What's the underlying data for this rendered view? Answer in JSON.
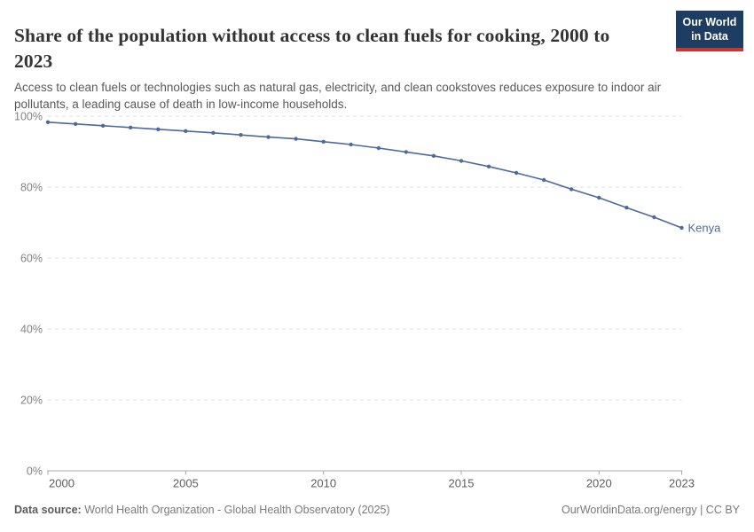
{
  "header": {
    "title": "Share of the population without access to clean fuels for cooking, 2000 to 2023",
    "subtitle": "Access to clean fuels or technologies such as natural gas, electricity, and clean cookstoves reduces exposure to indoor air pollutants, a leading cause of death in low-income households.",
    "logo": {
      "line1": "Our World",
      "line2": "in Data"
    }
  },
  "footer": {
    "source_label": "Data source:",
    "source_text": " World Health Organization - Global Health Observatory (2025)",
    "attribution": "OurWorldinData.org/energy | CC BY"
  },
  "chart_data": {
    "type": "line",
    "title": "Share of the population without access to clean fuels for cooking, 2000 to 2023",
    "xlabel": "",
    "ylabel": "",
    "xlim": [
      2000,
      2023
    ],
    "ylim": [
      0,
      100
    ],
    "x_ticks": [
      2000,
      2005,
      2010,
      2015,
      2020,
      2023
    ],
    "y_ticks": [
      0,
      20,
      40,
      60,
      80,
      100
    ],
    "y_tick_suffix": "%",
    "grid": "horizontal-dashed",
    "legend_position": "end-of-line-label",
    "series": [
      {
        "name": "Kenya",
        "color": "#4c6a9c",
        "x": [
          2000,
          2001,
          2002,
          2003,
          2004,
          2005,
          2006,
          2007,
          2008,
          2009,
          2010,
          2011,
          2012,
          2013,
          2014,
          2015,
          2016,
          2017,
          2018,
          2019,
          2020,
          2021,
          2022,
          2023
        ],
        "values": [
          98.3,
          97.8,
          97.3,
          96.8,
          96.3,
          95.8,
          95.3,
          94.7,
          94.1,
          93.6,
          92.8,
          92.0,
          91.0,
          89.9,
          88.8,
          87.4,
          85.8,
          84.0,
          82.0,
          79.4,
          77.0,
          74.2,
          71.5,
          68.5
        ]
      }
    ]
  },
  "colors": {
    "line": "#4c6a9c",
    "grid": "#dcdcdc",
    "axis": "#a8a8a8",
    "x_tick_label": "#5e5e5e",
    "y_tick_label": "#838383",
    "logo_bg": "#1d3d63",
    "logo_red": "#d0342c"
  }
}
